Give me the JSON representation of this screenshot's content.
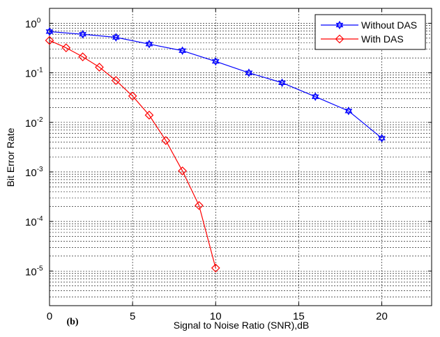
{
  "chart_data": {
    "type": "line",
    "panel_label": "(b)",
    "xlabel": "Signal to Noise Ratio (SNR),dB",
    "ylabel": "Bit Error Rate",
    "xlim": [
      0,
      23
    ],
    "ylim": [
      2e-06,
      2
    ],
    "yscale": "log",
    "grid": true,
    "legend_position": "top-right",
    "x_ticks": [
      0,
      5,
      10,
      15,
      20
    ],
    "y_ticks": [
      {
        "base": "10",
        "exp": "0",
        "value": 1
      },
      {
        "base": "10",
        "exp": "-1",
        "value": 0.1
      },
      {
        "base": "10",
        "exp": "-2",
        "value": 0.01
      },
      {
        "base": "10",
        "exp": "-3",
        "value": 0.001
      },
      {
        "base": "10",
        "exp": "-4",
        "value": 0.0001
      },
      {
        "base": "10",
        "exp": "-5",
        "value": 1e-05
      }
    ],
    "series": [
      {
        "name": "Without DAS",
        "color": "#0000ff",
        "marker": "hexagram",
        "x": [
          0,
          2,
          4,
          6,
          8,
          10,
          12,
          14,
          16,
          18,
          20
        ],
        "y": [
          0.68,
          0.6,
          0.52,
          0.38,
          0.28,
          0.17,
          0.1,
          0.063,
          0.033,
          0.017,
          0.0048
        ]
      },
      {
        "name": "With DAS",
        "color": "#ff0000",
        "marker": "diamond",
        "x": [
          0,
          1,
          2,
          3,
          4,
          5,
          6,
          7,
          8,
          9,
          10
        ],
        "y": [
          0.45,
          0.32,
          0.21,
          0.13,
          0.07,
          0.034,
          0.014,
          0.0043,
          0.00105,
          0.00021,
          1.15e-05
        ]
      }
    ]
  }
}
